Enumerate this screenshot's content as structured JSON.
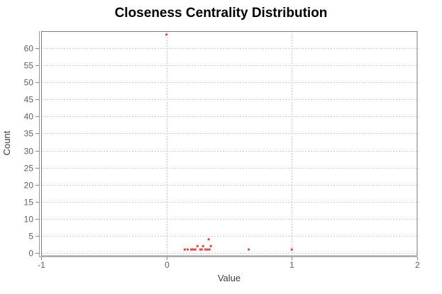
{
  "page": {
    "background": "#ffffff"
  },
  "chart_data": {
    "type": "scatter",
    "title": "Closeness Centrality Distribution",
    "xlabel": "Value",
    "ylabel": "Count",
    "xlim": [
      -1,
      2
    ],
    "ylim": [
      0,
      65
    ],
    "x_ticks": [
      -1,
      0,
      1,
      2
    ],
    "y_ticks": [
      0,
      5,
      10,
      15,
      20,
      25,
      30,
      35,
      40,
      45,
      50,
      55,
      60
    ],
    "grid": "dashed",
    "legend_position": "none",
    "colors": {
      "point": "#ee4343",
      "h_grid": "#cccccc",
      "v_grid": "#c3cad6",
      "frame": "#7d7d7d",
      "axis_line": "#9a9a9a",
      "tick": "#8a8a8a"
    },
    "points": [
      [
        0.0,
        64
      ],
      [
        0.146,
        1
      ],
      [
        0.169,
        1
      ],
      [
        0.197,
        1
      ],
      [
        0.213,
        1
      ],
      [
        0.23,
        1
      ],
      [
        0.247,
        2
      ],
      [
        0.27,
        1
      ],
      [
        0.281,
        1
      ],
      [
        0.292,
        2
      ],
      [
        0.309,
        1
      ],
      [
        0.326,
        1
      ],
      [
        0.337,
        4
      ],
      [
        0.343,
        1
      ],
      [
        0.354,
        2
      ],
      [
        0.657,
        1
      ],
      [
        1.0,
        1
      ]
    ]
  }
}
